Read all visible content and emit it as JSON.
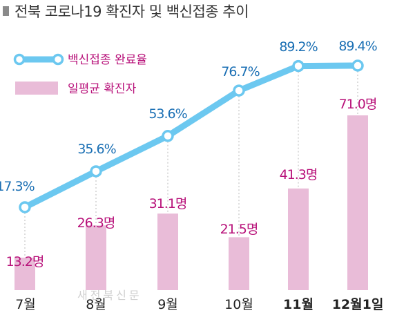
{
  "title": "전북 코로나19 확진자 및 백신접종 추이",
  "watermark": "새전북신문",
  "colors": {
    "line": "#6cc8f0",
    "line_label": "#1a6fb4",
    "bar": "#e9bcd8",
    "bar_label": "#b8127a"
  },
  "chart_data": {
    "type": "bar+line",
    "categories": [
      "7월",
      "8월",
      "9월",
      "10월",
      "11월",
      "12월1일"
    ],
    "bold_categories": [
      "11월",
      "12월1일"
    ],
    "series": [
      {
        "name": "백신접종 완료율",
        "kind": "line",
        "unit": "%",
        "values": [
          17.3,
          35.6,
          53.6,
          76.7,
          89.2,
          89.4
        ],
        "labels": [
          "17.3%",
          "35.6%",
          "53.6%",
          "76.7%",
          "89.2%",
          "89.4%"
        ]
      },
      {
        "name": "일평균 확진자",
        "kind": "bar",
        "unit": "명",
        "values": [
          13.2,
          26.3,
          31.1,
          21.5,
          41.3,
          71.0
        ],
        "labels": [
          "13.2명",
          "26.3명",
          "31.1명",
          "21.5명",
          "41.3명",
          "71.0명"
        ]
      }
    ],
    "legend": "top-left",
    "grid": false
  }
}
